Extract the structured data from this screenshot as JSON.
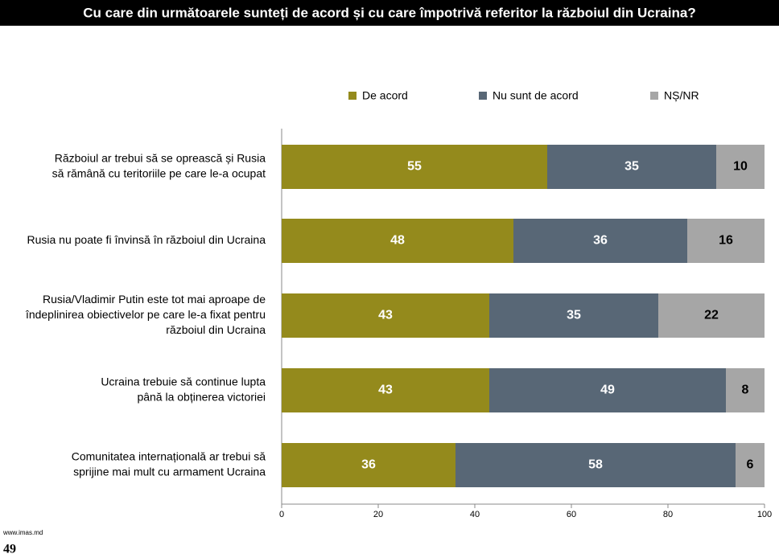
{
  "chart_data": {
    "type": "stacked-bar-horizontal",
    "title": "Cu care din următoarele sunteți de acord și cu care împotrivă referitor la războiul din Ucraina?",
    "categories": [
      [
        "Războiul ar trebui să se oprească și Rusia",
        "să rămână cu teritoriile pe care le-a ocupat"
      ],
      [
        "Rusia nu poate fi învinsă în războiul din Ucraina"
      ],
      [
        "Rusia/Vladimir Putin este tot mai aproape de",
        "îndeplinirea obiectivelor pe care le-a fixat pentru",
        "războiul din Ucraina"
      ],
      [
        "Ucraina trebuie să continue lupta",
        "până la obținerea victoriei"
      ],
      [
        "Comunitatea internațională ar trebui să",
        "sprijine mai mult cu armament Ucraina"
      ]
    ],
    "series": [
      {
        "name": "De acord",
        "color": "#948a1c",
        "label_color": "#ffffff",
        "values": [
          55,
          48,
          43,
          43,
          36
        ]
      },
      {
        "name": "Nu sunt de acord",
        "color": "#586776",
        "label_color": "#ffffff",
        "values": [
          35,
          36,
          35,
          49,
          58
        ]
      },
      {
        "name": "NȘ/NR",
        "color": "#a6a6a6",
        "label_color": "#000000",
        "values": [
          10,
          16,
          22,
          8,
          6
        ]
      }
    ],
    "xlim": [
      0,
      100
    ],
    "xticks": [
      0,
      20,
      40,
      60,
      80,
      100
    ],
    "legend": "top"
  },
  "footer": {
    "url": "www.imas.md",
    "page": "49"
  }
}
